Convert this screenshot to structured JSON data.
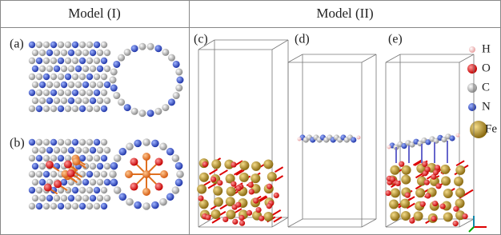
{
  "header": {
    "left": "Model (I)",
    "right": "Model (II)"
  },
  "panels": [
    "(a)",
    "(b)",
    "(c)",
    "(d)",
    "(e)"
  ],
  "legend": [
    "H",
    "O",
    "C",
    "N",
    "Fe"
  ]
}
